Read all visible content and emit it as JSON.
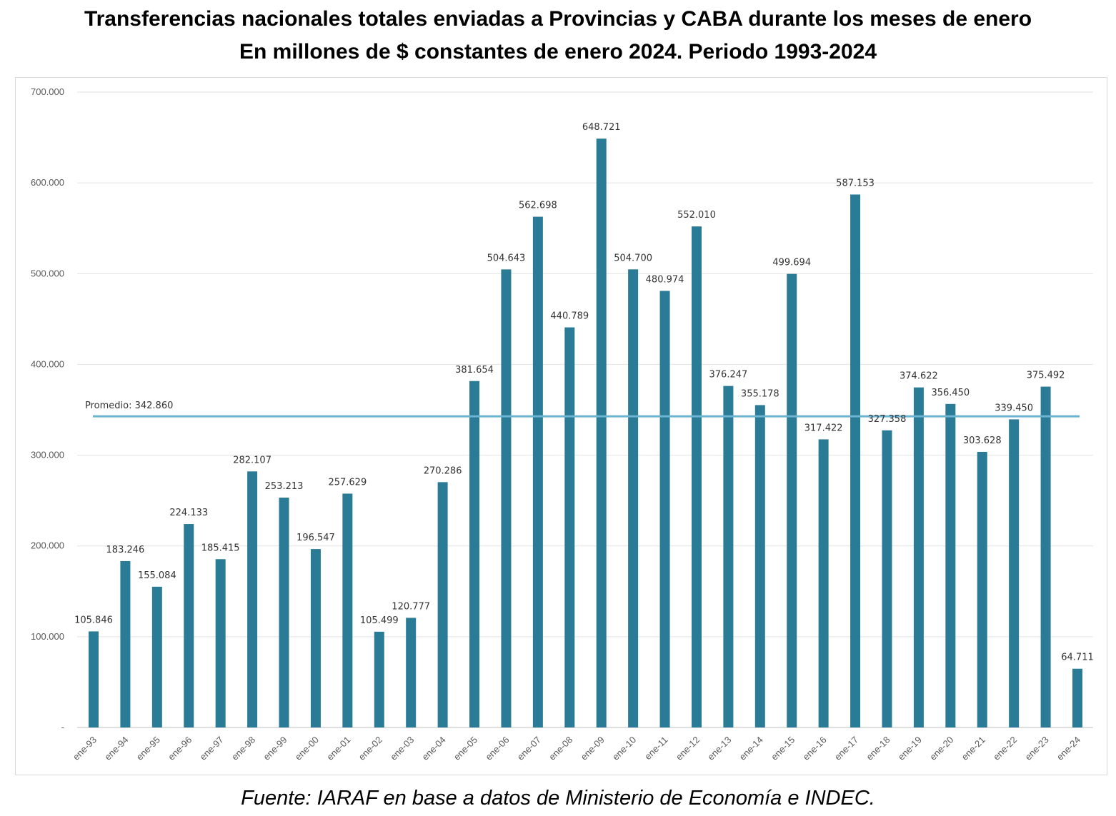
{
  "chart_data": {
    "type": "bar",
    "title": "Transferencias nacionales totales enviadas a Provincias y CABA durante los meses de enero",
    "subtitle": "En millones de $ constantes de enero 2024. Periodo 1993-2024",
    "source": "Fuente: IARAF en base a datos de Ministerio de Economía e INDEC.",
    "categories": [
      "ene-93",
      "ene-94",
      "ene-95",
      "ene-96",
      "ene-97",
      "ene-98",
      "ene-99",
      "ene-00",
      "ene-01",
      "ene-02",
      "ene-03",
      "ene-04",
      "ene-05",
      "ene-06",
      "ene-07",
      "ene-08",
      "ene-09",
      "ene-10",
      "ene-11",
      "ene-12",
      "ene-13",
      "ene-14",
      "ene-15",
      "ene-16",
      "ene-17",
      "ene-18",
      "ene-19",
      "ene-20",
      "ene-21",
      "ene-22",
      "ene-23",
      "ene-24"
    ],
    "values": [
      105846,
      183246,
      155084,
      224133,
      185415,
      282107,
      253213,
      196547,
      257629,
      105499,
      120777,
      270286,
      381654,
      504643,
      562698,
      440789,
      648721,
      504700,
      480974,
      552010,
      376247,
      355178,
      499694,
      317422,
      587153,
      327358,
      374622,
      356450,
      303628,
      339450,
      375492,
      64711
    ],
    "value_labels": [
      "105.846",
      "183.246",
      "155.084",
      "224.133",
      "185.415",
      "282.107",
      "253.213",
      "196.547",
      "257.629",
      "105.499",
      "120.777",
      "270.286",
      "381.654",
      "504.643",
      "562.698",
      "440.789",
      "648.721",
      "504.700",
      "480.974",
      "552.010",
      "376.247",
      "355.178",
      "499.694",
      "317.422",
      "587.153",
      "327.358",
      "374.622",
      "356.450",
      "303.628",
      "339.450",
      "375.492",
      "64.711"
    ],
    "yticks": [
      0,
      100000,
      200000,
      300000,
      400000,
      500000,
      600000,
      700000
    ],
    "ytick_labels": [
      "-",
      "100.000",
      "200.000",
      "300.000",
      "400.000",
      "500.000",
      "600.000",
      "700.000"
    ],
    "ylim": [
      0,
      700000
    ],
    "grid": true,
    "average": {
      "label": "Promedio:  342.860",
      "value": 342860
    },
    "colors": {
      "bar": "#2a7b96",
      "average": "#6cb4d0",
      "grid": "#e2e2e2",
      "axis": "#bfbfbf",
      "text": "#404040"
    }
  }
}
